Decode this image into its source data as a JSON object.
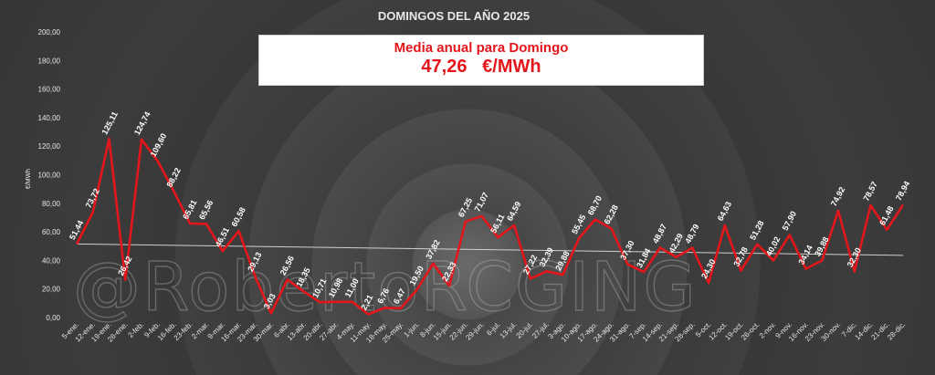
{
  "chart_data": {
    "type": "line",
    "title": "DOMINGOS DEL AÑO 2025",
    "ylabel": "€/MWh",
    "xlabel": "",
    "ylim": [
      0,
      200
    ],
    "yticks": [
      "0,00",
      "20,00",
      "40,00",
      "60,00",
      "80,00",
      "100,00",
      "120,00",
      "140,00",
      "160,00",
      "180,00",
      "200,00"
    ],
    "grid": false,
    "series_color": "#e3161b",
    "categories": [
      "5-ene.",
      "12-ene.",
      "19-ene.",
      "26-ene.",
      "2-feb.",
      "9-feb.",
      "16-feb.",
      "23-feb.",
      "2-mar.",
      "9-mar.",
      "16-mar.",
      "23-mar.",
      "30-mar.",
      "6-abr.",
      "13-abr.",
      "20-abr.",
      "27-abr.",
      "4-may.",
      "11-may.",
      "18-may.",
      "25-may.",
      "1-jun.",
      "8-jun.",
      "15-jun.",
      "22-jun.",
      "29-jun.",
      "6-jul.",
      "13-jul.",
      "20-jul.",
      "27-jul.",
      "3-ago.",
      "10-ago.",
      "17-ago.",
      "24-ago.",
      "31-ago.",
      "7-sep.",
      "14-sep.",
      "21-sep.",
      "28-sep.",
      "5-oct.",
      "12-oct.",
      "19-oct.",
      "26-oct.",
      "2-nov.",
      "9-nov.",
      "16-nov.",
      "23-nov.",
      "30-nov.",
      "7-dic.",
      "14-dic.",
      "21-dic.",
      "28-dic."
    ],
    "values": [
      51.44,
      73.72,
      125.11,
      26.42,
      124.74,
      109.6,
      88.22,
      65.81,
      65.56,
      46.51,
      60.58,
      29.13,
      3.03,
      26.56,
      18.35,
      10.71,
      10.98,
      11.0,
      2.21,
      6.76,
      6.47,
      19.5,
      37.82,
      22.33,
      67.25,
      71.07,
      56.11,
      64.59,
      27.22,
      32.39,
      29.88,
      55.45,
      68.7,
      62.28,
      37.3,
      31.84,
      48.87,
      42.29,
      48.79,
      24.3,
      64.63,
      32.78,
      51.28,
      40.02,
      57.9,
      34.14,
      39.88,
      74.92,
      32.3,
      78.57,
      61.48,
      78.94
    ],
    "data_labels": [
      "51,44",
      "73,72",
      "125,11",
      "26,42",
      "124,74",
      "109,60",
      "88,22",
      "65,81",
      "65,56",
      "46,51",
      "60,58",
      "29,13",
      "3,03",
      "26,56",
      "18,35",
      "10,71",
      "10,98",
      "11,00",
      "2,21",
      "6,76",
      "6,47",
      "19,50",
      "37,82",
      "22,33",
      "67,25",
      "71,07",
      "56,11",
      "64,59",
      "27,22",
      "32,39",
      "29,88",
      "55,45",
      "68,70",
      "62,28",
      "37,30",
      "31,84",
      "48,87",
      "42,29",
      "48,79",
      "24,30",
      "64,63",
      "32,78",
      "51,28",
      "40,02",
      "57,90",
      "34,14",
      "39,88",
      "74,92",
      "32,30",
      "78,57",
      "61,48",
      "78,94"
    ],
    "trendline": {
      "start": 51.5,
      "end": 43.5,
      "color": "#d0d0d0"
    },
    "annual_mean": {
      "label": "Media anual para Domingo",
      "value": "47,26",
      "unit": "€/MWh"
    }
  },
  "watermark": "@RobertoRCGING"
}
